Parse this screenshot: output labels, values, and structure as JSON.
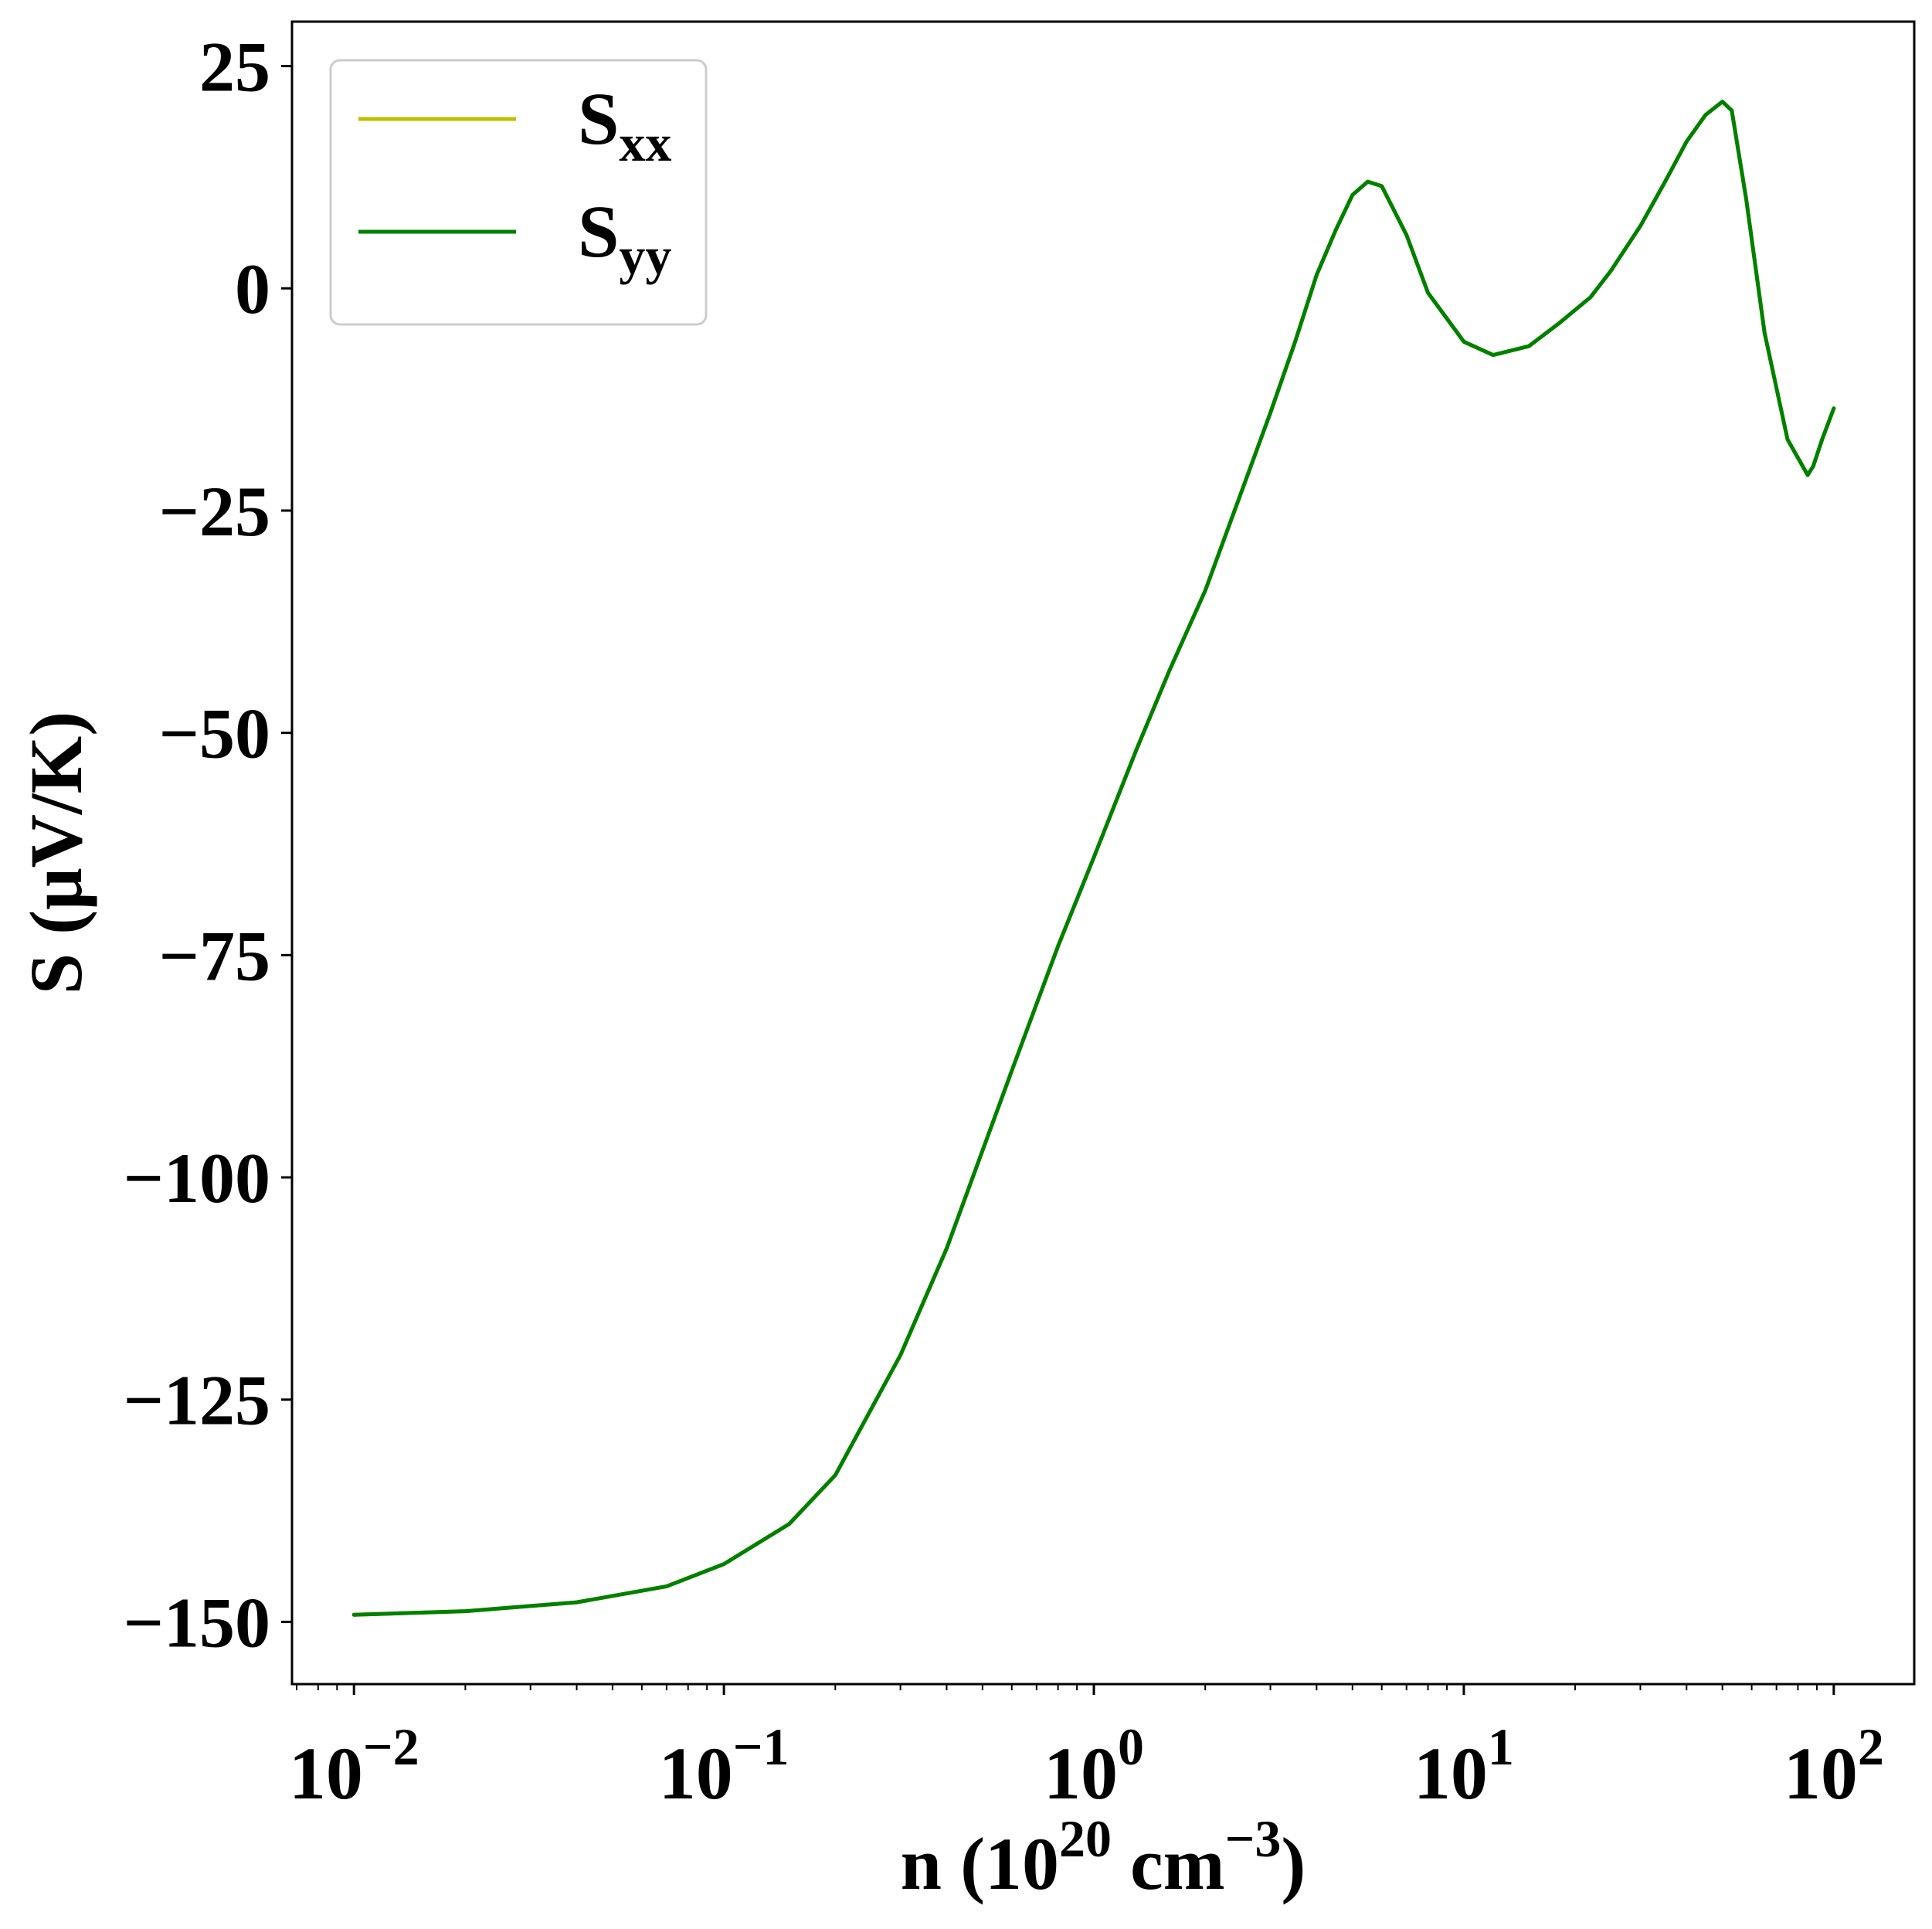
{
  "chart_data": {
    "type": "line",
    "title": "",
    "xlabel": {
      "base": "n (10",
      "sup1": "20",
      "mid": " cm",
      "sup2": "−3",
      "end": ")"
    },
    "ylabel": "S (μV/K)",
    "xscale": "log",
    "xlim": [
      0.0068,
      165
    ],
    "ylim": [
      -157,
      30
    ],
    "grid": false,
    "legend_position": "top-left",
    "x_ticks": [
      {
        "value": 0.01,
        "base": "10",
        "exp": "−2"
      },
      {
        "value": 0.1,
        "base": "10",
        "exp": "−1"
      },
      {
        "value": 1,
        "base": "10",
        "exp": "0"
      },
      {
        "value": 10,
        "base": "10",
        "exp": "1"
      },
      {
        "value": 100,
        "base": "10",
        "exp": "2"
      }
    ],
    "y_ticks": [
      {
        "value": 25,
        "label": "25"
      },
      {
        "value": 0,
        "label": "0"
      },
      {
        "value": -25,
        "label": "−25"
      },
      {
        "value": -50,
        "label": "−50"
      },
      {
        "value": -75,
        "label": "−75"
      },
      {
        "value": -100,
        "label": "−100"
      },
      {
        "value": -125,
        "label": "−125"
      },
      {
        "value": -150,
        "label": "−150"
      }
    ],
    "series": [
      {
        "name_base": "S",
        "name_sub": "xx",
        "color": "#bfbf00",
        "x": [
          0.01,
          0.02,
          0.04,
          0.07,
          0.1,
          0.15,
          0.2,
          0.3,
          0.4,
          0.6,
          0.8,
          1.0,
          1.3,
          1.6,
          2.0,
          2.5,
          3.0,
          3.5,
          4.0,
          4.5,
          5.0,
          5.5,
          6.0,
          7.0,
          8.0,
          10.0,
          12.0,
          15.0,
          18.0,
          22.0,
          25.0,
          30.0,
          35.0,
          40.0,
          45.0,
          50.0,
          53.0,
          58.0,
          65.0,
          75.0,
          85.0,
          88.0,
          93.0,
          100.0
        ],
        "y": [
          -149.2,
          -148.8,
          -147.8,
          -146.0,
          -143.5,
          -139.0,
          -133.5,
          -120.0,
          -108.0,
          -88.0,
          -74.0,
          -64.0,
          -52.0,
          -43.0,
          -34.0,
          -23.0,
          -14.0,
          -6.0,
          1.5,
          6.5,
          10.5,
          12.0,
          11.5,
          6.0,
          -0.5,
          -6.0,
          -7.5,
          -6.5,
          -4.0,
          -1.0,
          2.0,
          7.0,
          12.0,
          16.5,
          19.5,
          21.0,
          20.0,
          10.0,
          -5.0,
          -17.0,
          -21.0,
          -20.0,
          -17.0,
          -13.5
        ]
      },
      {
        "name_base": "S",
        "name_sub": "yy",
        "color": "#008000",
        "x": [
          0.01,
          0.02,
          0.04,
          0.07,
          0.1,
          0.15,
          0.2,
          0.3,
          0.4,
          0.6,
          0.8,
          1.0,
          1.3,
          1.6,
          2.0,
          2.5,
          3.0,
          3.5,
          4.0,
          4.5,
          5.0,
          5.5,
          6.0,
          7.0,
          8.0,
          10.0,
          12.0,
          15.0,
          18.0,
          22.0,
          25.0,
          30.0,
          35.0,
          40.0,
          45.0,
          50.0,
          53.0,
          58.0,
          65.0,
          75.0,
          85.0,
          88.0,
          93.0,
          100.0
        ],
        "y": [
          -149.2,
          -148.8,
          -147.8,
          -146.0,
          -143.5,
          -139.0,
          -133.5,
          -120.0,
          -108.0,
          -88.0,
          -74.0,
          -64.0,
          -52.0,
          -43.0,
          -34.0,
          -23.0,
          -14.0,
          -6.0,
          1.5,
          6.5,
          10.5,
          12.0,
          11.5,
          6.0,
          -0.5,
          -6.0,
          -7.5,
          -6.5,
          -4.0,
          -1.0,
          2.0,
          7.0,
          12.0,
          16.5,
          19.5,
          21.0,
          20.0,
          10.0,
          -5.0,
          -17.0,
          -21.0,
          -20.0,
          -17.0,
          -13.5
        ]
      }
    ]
  }
}
